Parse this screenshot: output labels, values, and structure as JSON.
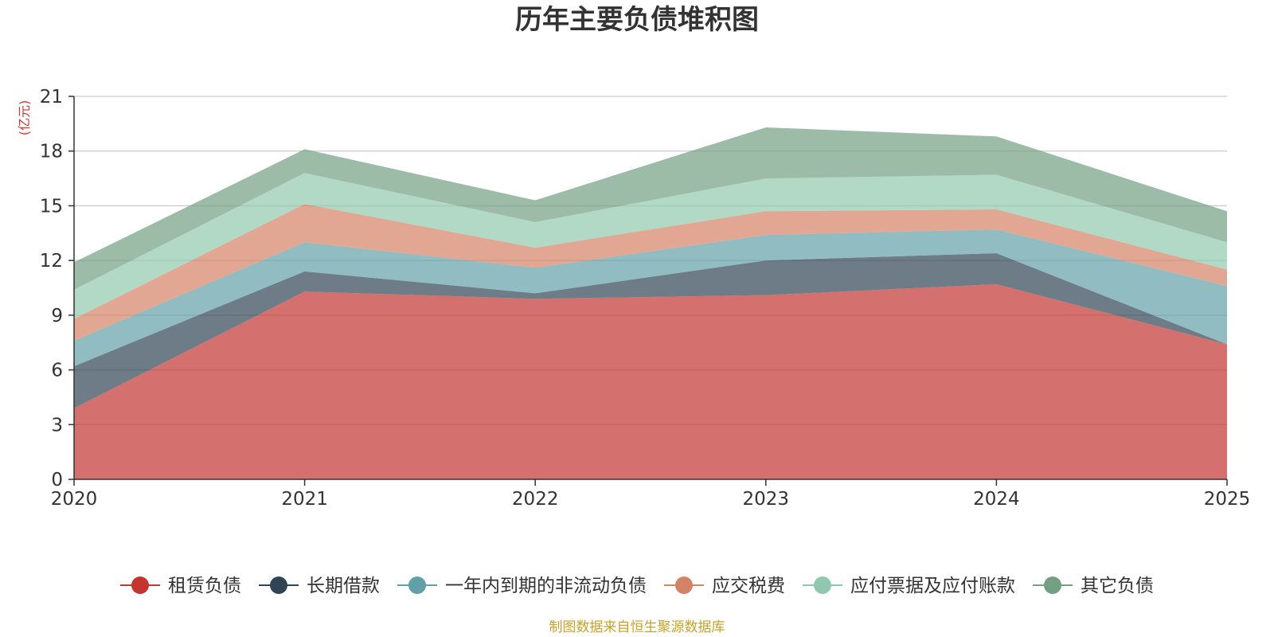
{
  "chart_data": {
    "type": "area",
    "stacked": true,
    "title": "历年主要负债堆积图",
    "ylabel": "(亿元)",
    "xlabel": "",
    "categories": [
      "2020",
      "2021",
      "2022",
      "2023",
      "2024",
      "2025"
    ],
    "ylim": [
      0,
      21
    ],
    "yticks": [
      0,
      3,
      6,
      9,
      12,
      15,
      18,
      21
    ],
    "grid": true,
    "legend_position": "bottom",
    "series": [
      {
        "name": "租赁负债",
        "color": "#c23531",
        "values": [
          3.9,
          10.3,
          9.9,
          10.1,
          10.7,
          7.4
        ]
      },
      {
        "name": "长期借款",
        "color": "#2f4554",
        "values": [
          2.3,
          1.1,
          0.3,
          1.9,
          1.7,
          0.0
        ]
      },
      {
        "name": "一年内到期的非流动负债",
        "color": "#61a0a8",
        "values": [
          1.4,
          1.6,
          1.4,
          1.4,
          1.3,
          3.2
        ]
      },
      {
        "name": "应交税费",
        "color": "#d48265",
        "values": [
          1.2,
          2.1,
          1.1,
          1.3,
          1.1,
          0.9
        ]
      },
      {
        "name": "应付票据及应付账款",
        "color": "#91c7ae",
        "values": [
          1.6,
          1.7,
          1.4,
          1.8,
          1.9,
          1.5
        ]
      },
      {
        "name": "其它负债",
        "color": "#749f83",
        "values": [
          1.5,
          1.3,
          1.2,
          2.8,
          2.1,
          1.7
        ]
      }
    ]
  },
  "source_note": "制图数据来自恒生聚源数据库"
}
